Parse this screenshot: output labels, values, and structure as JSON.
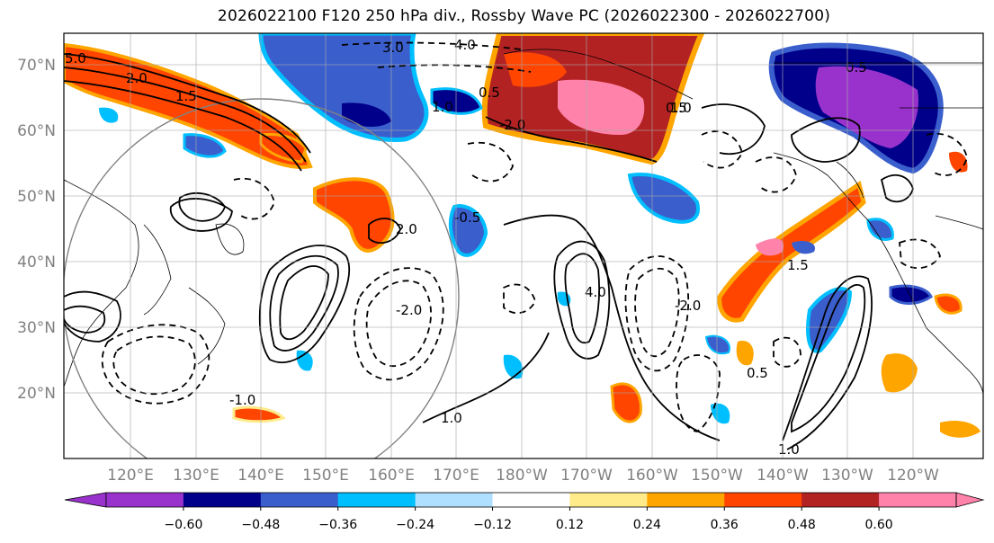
{
  "title": "2026022100 F120 250 hPa div., Rossby Wave PC (2026022300 - 2026022700)",
  "lat_labels": [
    "70°N",
    "60°N",
    "50°N",
    "40°N",
    "30°N",
    "20°N"
  ],
  "lon_labels": [
    "120°E",
    "130°E",
    "140°E",
    "150°E",
    "160°E",
    "170°E",
    "180°W",
    "170°W",
    "160°W",
    "150°W",
    "140°W",
    "130°W",
    "120°W"
  ],
  "colorbar": {
    "colors": [
      "#9932cc",
      "#00008b",
      "#3a5fcd",
      "#00bfff",
      "#b0e0ff",
      "#ffffff",
      "#ffeb8a",
      "#ffa500",
      "#ff4500",
      "#b22222",
      "#ff82ab"
    ],
    "tick_labels": [
      "−0.60",
      "−0.48",
      "−0.36",
      "−0.24",
      "−0.12",
      "0.12",
      "0.24",
      "0.36",
      "0.48",
      "0.60"
    ]
  },
  "contour_labels": [
    "4.0",
    "3.0",
    "5.0",
    "2.0",
    "1.5",
    "1.0",
    "0.5",
    "-2.0",
    "-0.5",
    "1.0",
    "2.0",
    "0.5",
    "0.5",
    "4.0",
    "-2.0",
    "0.5",
    "1.0",
    "1.5",
    "-2.0",
    "1.0",
    "-1.0"
  ]
}
